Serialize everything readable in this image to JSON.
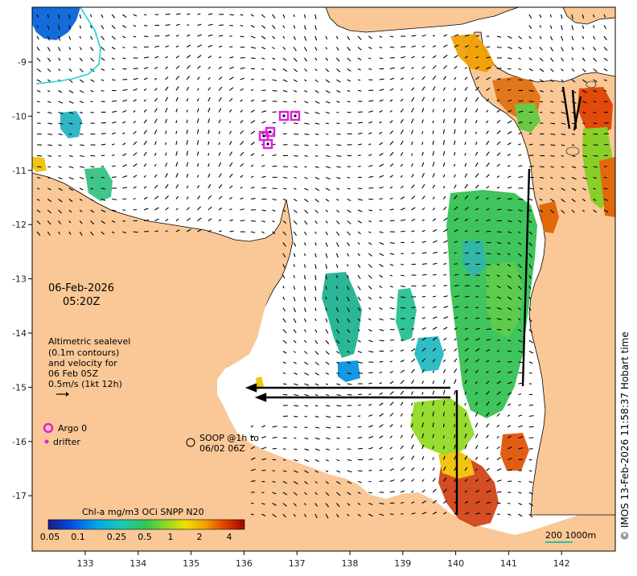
{
  "map": {
    "date": "06-Feb-2026",
    "time": "05:20Z",
    "legend_lines": [
      "Altimetric sealevel",
      "(0.1m contours)",
      "and velocity for",
      "06 Feb 05Z",
      "0.5m/s (1kt 12h)"
    ],
    "argo_label": "Argo 0",
    "drifter_label": "drifter",
    "soop_label_line1": "SOOP @1h to",
    "soop_label_line2": "06/02 06Z",
    "credit": "© IMOS 13-Feb-2026 11:58:37 Hobart time",
    "scale_label": "200  1000m",
    "x_ticks": [
      "133",
      "134",
      "135",
      "136",
      "137",
      "138",
      "139",
      "140",
      "141",
      "142"
    ],
    "y_ticks": [
      "-9",
      "-10",
      "-11",
      "-12",
      "-13",
      "-14",
      "-15",
      "-16",
      "-17"
    ],
    "colorbar": {
      "title": "Chl-a mg/m3 OCi SNPP N20",
      "ticks": [
        "0.05",
        "0.1",
        "0.25",
        "0.5",
        "1",
        "2",
        "4"
      ]
    },
    "colors": {
      "land": "#f9c896",
      "ocean": "#ffffff",
      "argo": "#e020e0",
      "scale_bar": "#2bbfa8"
    }
  }
}
